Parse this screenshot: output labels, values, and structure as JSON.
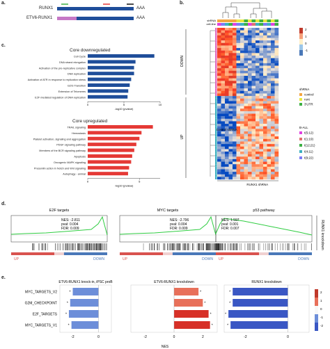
{
  "panels": {
    "a": {
      "label": "a.",
      "rows": [
        {
          "name": "RUNX1",
          "tail": "AAA"
        },
        {
          "name": "ETV6-RUNX1",
          "tail": "AAA"
        }
      ]
    },
    "b": {
      "label": "b.",
      "col_annot_labels": [
        "shRNA",
        "cell-line"
      ],
      "row_groups": [
        "DOWN",
        "UP"
      ],
      "col_groups": [
        "Control shRNA",
        "RUNX1 shRNA"
      ],
      "scale_ticks": [
        "2",
        "1",
        "0",
        "-1"
      ],
      "legend_shrna_title": "shRNA",
      "legend_shrna": [
        "control",
        "runt",
        "3'UTR"
      ],
      "legend_ball_title": "B-ALL",
      "legend_ball": [
        "t(5;12)",
        "t(1;19)",
        "t(12;21)",
        "t(4;11)",
        "t(9;22)"
      ]
    },
    "c": {
      "label": "c.",
      "down_title": "Core downregulated",
      "down_terms": [
        "Cell Cycle",
        "DNA strand elongation",
        "Activation of the pre-replicative complex",
        "DNA replication",
        "Activation of ATR in response to replication stress",
        "G2/S Transition",
        "Extension of Telomeres",
        "E2F mediated regulation of DNA replication"
      ],
      "down_values": [
        9.2,
        6.6,
        6.4,
        6.4,
        6.0,
        5.8,
        5.6,
        5.5
      ],
      "down_ticks": [
        "0",
        "5",
        "10"
      ],
      "down_xlabel": "-log10 (pvalue)",
      "up_title": "Core upregulated",
      "up_terms": [
        "TRAIL signaling",
        "Hemostasis",
        "Platelet activation, signaling and aggregation",
        "PDGF signaling pathway",
        "Members of the BCR signaling pathway",
        "Apoptosis",
        "Oncogenic MAPK signaling",
        "Presenilin action in Notch and Wnt signaling",
        "Autophagy - animal"
      ],
      "up_values": [
        6.3,
        5.2,
        5.0,
        4.7,
        4.5,
        4.3,
        4.2,
        4.0,
        3.9
      ],
      "up_ticks": [
        "0",
        "5"
      ],
      "up_xlabel": "-log10 (pvalue)"
    },
    "d": {
      "label": "d.",
      "side_label": "RUNX1 knockdown",
      "up_label": "UP",
      "down_label": "DOWN",
      "plots": [
        {
          "title": "E2F targets",
          "nes": "NES: -2.811",
          "pval": "pval: 0.004",
          "fdr": "FDR: 0.009"
        },
        {
          "title": "MYC targets",
          "nes": "NES: -2.796",
          "pval": "pval: 0.004",
          "fdr": "FDR: 0.009"
        },
        {
          "title": "p53 pathway",
          "nes": "NES: 1.597",
          "pval": "pval: 0.001",
          "fdr": "FDR: 0.007"
        }
      ]
    },
    "e": {
      "label": "e.",
      "xlabel": "NES",
      "pathways": [
        "MYC_TARGETS_V2",
        "G2M_CHECKPOINT",
        "E2F_TARGETS",
        "MYC_TARGETS_V1"
      ],
      "ticks": [
        "-2",
        "0",
        "2"
      ],
      "scale_ticks": [
        "2",
        "1",
        "0",
        "-1",
        "-2"
      ],
      "star": "*"
    }
  },
  "chart_data": [
    {
      "type": "bar",
      "title": "Core downregulated",
      "categories": [
        "Cell Cycle",
        "DNA strand elongation",
        "Activation of the pre-replicative complex",
        "DNA replication",
        "Activation of ATR in response to replication stress",
        "G2/S Transition",
        "Extension of Telomeres",
        "E2F mediated regulation of DNA replication"
      ],
      "values": [
        9.2,
        6.6,
        6.4,
        6.4,
        6.0,
        5.8,
        5.6,
        5.5
      ],
      "xlabel": "-log10 (pvalue)",
      "xlim": [
        0,
        10
      ]
    },
    {
      "type": "bar",
      "title": "Core upregulated",
      "categories": [
        "TRAIL signaling",
        "Hemostasis",
        "Platelet activation, signaling and aggregation",
        "PDGF signaling pathway",
        "Members of the BCR signaling pathway",
        "Apoptosis",
        "Oncogenic MAPK signaling",
        "Presenilin action in Notch and Wnt signaling",
        "Autophagy - animal"
      ],
      "values": [
        6.3,
        5.2,
        5.0,
        4.7,
        4.5,
        4.3,
        4.2,
        4.0,
        3.9
      ],
      "xlabel": "-log10 (pvalue)",
      "xlim": [
        0,
        7
      ]
    },
    {
      "type": "bar",
      "title": "ETV6-RUNX1 knock-in, iPSC proB",
      "categories": [
        "MYC_TARGETS_V2",
        "G2M_CHECKPOINT",
        "E2F_TARGETS",
        "MYC_TARGETS_V1"
      ],
      "values": [
        -2.0,
        -2.2,
        -2.3,
        -2.1
      ],
      "xlabel": "NES",
      "xlim": [
        -3,
        1
      ]
    },
    {
      "type": "bar",
      "title": "ETV6-RUNX1 knockdown",
      "categories": [
        "MYC_TARGETS_V2",
        "G2M_CHECKPOINT",
        "E2F_TARGETS",
        "MYC_TARGETS_V1"
      ],
      "values": [
        1.7,
        2.0,
        2.4,
        2.5
      ],
      "xlabel": "NES",
      "xlim": [
        -3,
        3
      ]
    },
    {
      "type": "bar",
      "title": "RUNX1 knockdown",
      "categories": [
        "MYC_TARGETS_V2",
        "G2M_CHECKPOINT",
        "E2F_TARGETS",
        "MYC_TARGETS_V1"
      ],
      "values": [
        -2.6,
        -2.6,
        -2.8,
        -2.7
      ],
      "xlabel": "NES",
      "xlim": [
        -3,
        1
      ]
    }
  ]
}
